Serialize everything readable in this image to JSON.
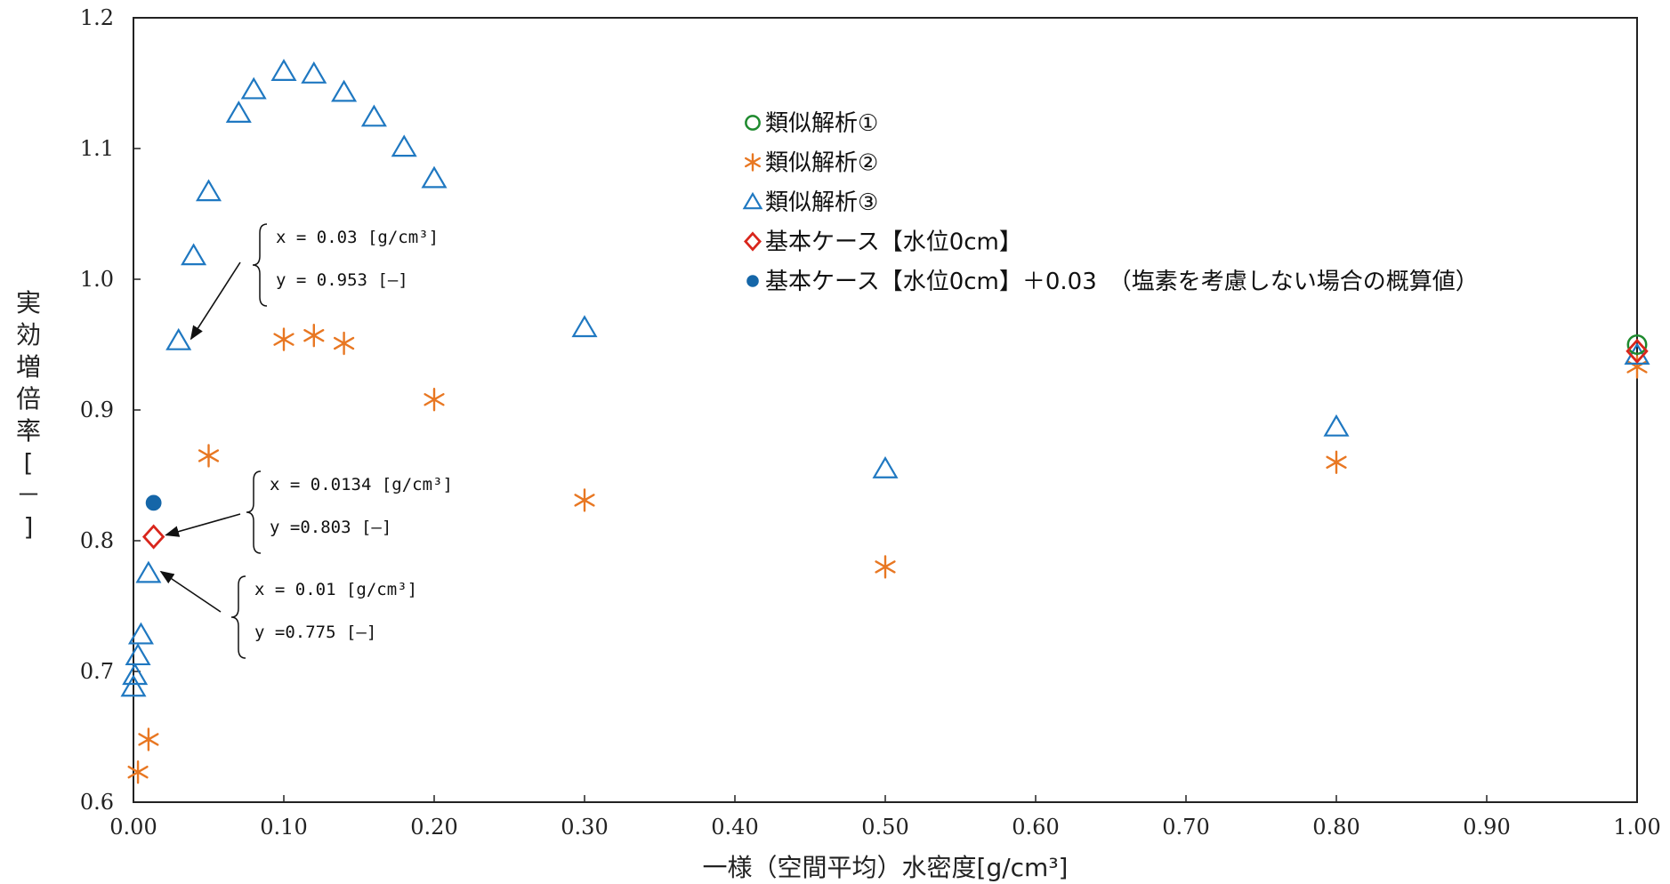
{
  "chart_data": {
    "type": "scatter",
    "xlabel": "一様（空間平均）水密度[g/cm³]",
    "ylabel": "実効増倍率[－]",
    "xlim": [
      0,
      1
    ],
    "ylim": [
      0.6,
      1.2
    ],
    "xticks": [
      "0.00",
      "0.10",
      "0.20",
      "0.30",
      "0.40",
      "0.50",
      "0.60",
      "0.70",
      "0.80",
      "0.90",
      "1.00"
    ],
    "yticks": [
      "0.6",
      "0.7",
      "0.8",
      "0.9",
      "1.0",
      "1.1",
      "1.2"
    ],
    "grid": false,
    "legend_position": "top-center",
    "series": [
      {
        "name": "類似解析①",
        "marker": "circle-open",
        "color": "#1e8a2e",
        "points": [
          [
            1.0,
            0.95
          ]
        ]
      },
      {
        "name": "類似解析②",
        "marker": "asterisk",
        "color": "#e87722",
        "points": [
          [
            0.003,
            0.623
          ],
          [
            0.01,
            0.648
          ],
          [
            0.05,
            0.865
          ],
          [
            0.1,
            0.954
          ],
          [
            0.12,
            0.957
          ],
          [
            0.14,
            0.951
          ],
          [
            0.2,
            0.908
          ],
          [
            0.3,
            0.831
          ],
          [
            0.5,
            0.78
          ],
          [
            0.8,
            0.86
          ],
          [
            1.0,
            0.933
          ]
        ]
      },
      {
        "name": "類似解析③",
        "marker": "triangle-open",
        "color": "#1f78c1",
        "points": [
          [
            0.0,
            0.688
          ],
          [
            0.001,
            0.697
          ],
          [
            0.003,
            0.712
          ],
          [
            0.005,
            0.728
          ],
          [
            0.01,
            0.775
          ],
          [
            0.03,
            0.953
          ],
          [
            0.04,
            1.018
          ],
          [
            0.05,
            1.067
          ],
          [
            0.07,
            1.127
          ],
          [
            0.08,
            1.145
          ],
          [
            0.1,
            1.159
          ],
          [
            0.12,
            1.157
          ],
          [
            0.14,
            1.143
          ],
          [
            0.16,
            1.124
          ],
          [
            0.18,
            1.101
          ],
          [
            0.2,
            1.077
          ],
          [
            0.3,
            0.963
          ],
          [
            0.5,
            0.855
          ],
          [
            0.8,
            0.887
          ],
          [
            1.0,
            0.942
          ]
        ]
      },
      {
        "name": "基本ケース【水位0cm】",
        "marker": "diamond-open",
        "color": "#d9261c",
        "points": [
          [
            0.0134,
            0.803
          ],
          [
            1.0,
            0.945
          ]
        ]
      },
      {
        "name": "基本ケース【水位0cm】＋0.03　（塩素を考慮しない場合の概算値）",
        "marker": "circle-filled",
        "color": "#1566a8",
        "points": [
          [
            0.0134,
            0.829
          ]
        ]
      }
    ],
    "annotations": [
      {
        "lines": [
          "x = 0.03 [g/cm³]",
          "y = 0.953 [—]"
        ],
        "target": [
          0.03,
          0.953
        ]
      },
      {
        "lines": [
          "x = 0.0134 [g/cm³]",
          "y =0.803 [—]"
        ],
        "target": [
          0.0134,
          0.803
        ]
      },
      {
        "lines": [
          "x = 0.01 [g/cm³]",
          "y =0.775 [—]"
        ],
        "target": [
          0.01,
          0.775
        ]
      }
    ]
  }
}
